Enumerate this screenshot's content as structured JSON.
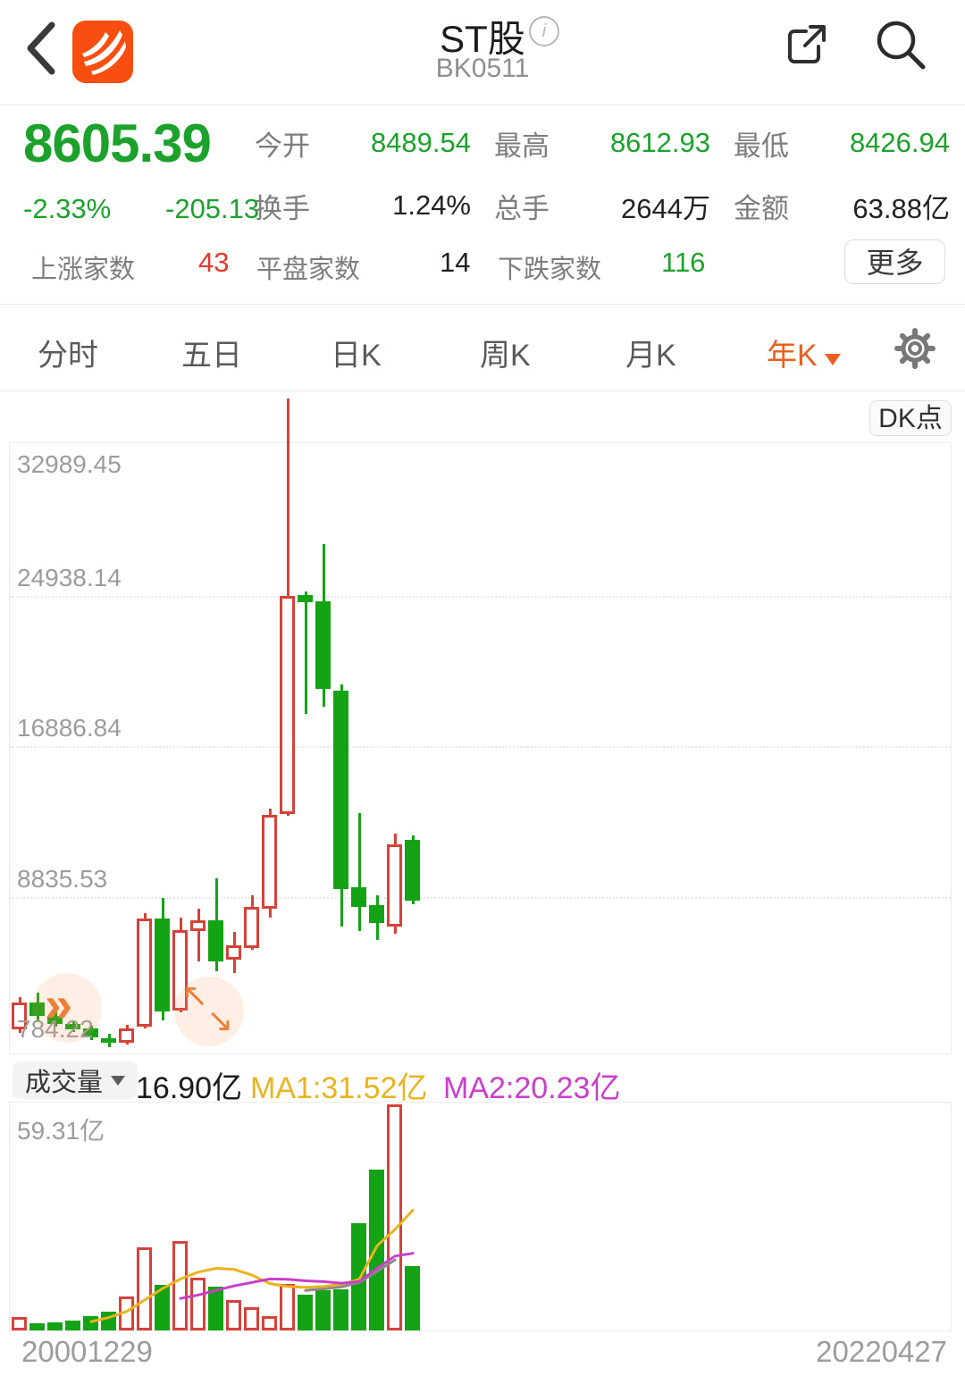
{
  "header": {
    "title": "ST股",
    "code": "BK0511"
  },
  "quote": {
    "price": "8605.39",
    "change_percent": "-2.33%",
    "change_amount": "-205.13",
    "stats": [
      {
        "label": "今开",
        "value": "8489.54",
        "color": "green"
      },
      {
        "label": "最高",
        "value": "8612.93",
        "color": "green"
      },
      {
        "label": "最低",
        "value": "8426.94",
        "color": "green"
      },
      {
        "label": "换手",
        "value": "1.24%",
        "color": "dark"
      },
      {
        "label": "总手",
        "value": "2644万",
        "color": "dark"
      },
      {
        "label": "金额",
        "value": "63.88亿",
        "color": "dark"
      }
    ],
    "breadth": [
      {
        "label": "上涨家数",
        "value": "43",
        "color": "red"
      },
      {
        "label": "平盘家数",
        "value": "14",
        "color": "dark"
      },
      {
        "label": "下跌家数",
        "value": "116",
        "color": "green"
      }
    ],
    "more_label": "更多"
  },
  "tabs": {
    "items": [
      "分时",
      "五日",
      "日K",
      "周K",
      "月K",
      "年K"
    ],
    "active": "年K"
  },
  "kline_pane": {
    "dk_label": "DK点"
  },
  "volume_header": {
    "selector": "成交量",
    "current": "16.90亿",
    "ma1": "MA1:31.52亿",
    "ma2": "MA2:20.23亿"
  },
  "colors": {
    "text_green": "#1ba12c",
    "text_red": "#e0392e",
    "candle_green": "#14a314",
    "candle_red": "#d5423a",
    "tab_active_orange": "#e8611f",
    "ma1_gold": "#e9b41f",
    "ma2_magenta": "#c93fc9",
    "ma3_gray": "#8a8a8a",
    "hint_orange": "#ee7f38"
  },
  "chart_data": {
    "type": "candlestick_with_volume",
    "period": "yearly",
    "x_start_label": "20001229",
    "x_end_label": "20220427",
    "y_axis_ticks": [
      32989.45,
      24938.14,
      16886.84,
      8835.53,
      784.22
    ],
    "volume_axis_max": 59.31,
    "volume_axis_max_label": "59.31亿",
    "grid": "dotted-horizontal",
    "candles": [
      {
        "year": 2000,
        "open": 1736,
        "high": 3449,
        "low": 1546,
        "close": 3163,
        "volume_yi": 3.6,
        "up": true
      },
      {
        "year": 2001,
        "open": 3163,
        "high": 3687,
        "low": 2117,
        "close": 2450,
        "volume_yi": 1.8,
        "up": false
      },
      {
        "year": 2002,
        "open": 2450,
        "high": 2688,
        "low": 1879,
        "close": 2022,
        "volume_yi": 2.2,
        "up": false
      },
      {
        "year": 2003,
        "open": 2022,
        "high": 2164,
        "low": 1593,
        "close": 1736,
        "volume_yi": 2.5,
        "up": false
      },
      {
        "year": 2004,
        "open": 1784,
        "high": 1927,
        "low": 1165,
        "close": 1308,
        "volume_yi": 3.8,
        "up": false
      },
      {
        "year": 2005,
        "open": 1260,
        "high": 1498,
        "low": 784.22,
        "close": 1023,
        "volume_yi": 5.0,
        "up": false
      },
      {
        "year": 2006,
        "open": 1023,
        "high": 1974,
        "low": 927,
        "close": 1784,
        "volume_yi": 8.9,
        "up": true
      },
      {
        "year": 2007,
        "open": 1879,
        "high": 7968,
        "low": 1784,
        "close": 7683,
        "volume_yi": 21.7,
        "up": true
      },
      {
        "year": 2008,
        "open": 7683,
        "high": 8777,
        "low": 2212,
        "close": 2688,
        "volume_yi": 11.9,
        "up": false
      },
      {
        "year": 2009,
        "open": 2735,
        "high": 7730,
        "low": 2640,
        "close": 7064,
        "volume_yi": 23.4,
        "up": true
      },
      {
        "year": 2010,
        "open": 7017,
        "high": 8206,
        "low": 5352,
        "close": 7588,
        "volume_yi": 13.8,
        "up": true
      },
      {
        "year": 2011,
        "open": 7588,
        "high": 9823,
        "low": 4829,
        "close": 5352,
        "volume_yi": 11.4,
        "up": false
      },
      {
        "year": 2012,
        "open": 5447,
        "high": 6969,
        "low": 4734,
        "close": 6256,
        "volume_yi": 7.9,
        "up": true
      },
      {
        "year": 2013,
        "open": 6066,
        "high": 8920,
        "low": 5971,
        "close": 8302,
        "volume_yi": 6.2,
        "up": true
      },
      {
        "year": 2014,
        "open": 8206,
        "high": 13534,
        "low": 7730,
        "close": 13201,
        "volume_yi": 3.8,
        "up": true
      },
      {
        "year": 2015,
        "open": 13248,
        "high": 35460,
        "low": 13153,
        "close": 24903,
        "volume_yi": 12.2,
        "up": true
      },
      {
        "year": 2016,
        "open": 24950,
        "high": 25141,
        "low": 18624,
        "close": 24570,
        "volume_yi": 9.5,
        "up": false
      },
      {
        "year": 2017,
        "open": 24617,
        "high": 27709,
        "low": 19003,
        "close": 19955,
        "volume_yi": 10.6,
        "up": false
      },
      {
        "year": 2018,
        "open": 19860,
        "high": 20193,
        "low": 7255,
        "close": 9253,
        "volume_yi": 10.8,
        "up": false
      },
      {
        "year": 2019,
        "open": 9348,
        "high": 13296,
        "low": 6969,
        "close": 8302,
        "volume_yi": 28.1,
        "up": false
      },
      {
        "year": 2020,
        "open": 8397,
        "high": 8920,
        "low": 6494,
        "close": 7446,
        "volume_yi": 42.1,
        "up": false
      },
      {
        "year": 2021,
        "open": 7255,
        "high": 12202,
        "low": 6874,
        "close": 11631,
        "volume_yi": 59.31,
        "up": true
      },
      {
        "year": 2022,
        "open": 11869,
        "high": 12107,
        "low": 8445,
        "close": 8605.39,
        "volume_yi": 16.9,
        "up": false
      }
    ],
    "volume_ma1": {
      "start_index": 4,
      "values": [
        2.3,
        3.4,
        5.0,
        8.0,
        11.0,
        13.5,
        15.3,
        16.3,
        16.0,
        14.5,
        12.3,
        11.5,
        11.3,
        11.5,
        12.1,
        13.4,
        22.2,
        26.5,
        31.52
      ]
    },
    "volume_ma2": {
      "start_index": 9,
      "values": [
        8.4,
        9.3,
        10.5,
        11.7,
        12.6,
        13.5,
        13.4,
        13.0,
        12.8,
        12.4,
        12.8,
        16.3,
        19.5,
        20.23
      ]
    },
    "volume_ma3": {
      "start_index": 16,
      "values": [
        10.5,
        10.9,
        11.4,
        12.6,
        15.5,
        18.5
      ]
    }
  },
  "x_axis": {
    "start": "20001229",
    "end": "20220427"
  }
}
